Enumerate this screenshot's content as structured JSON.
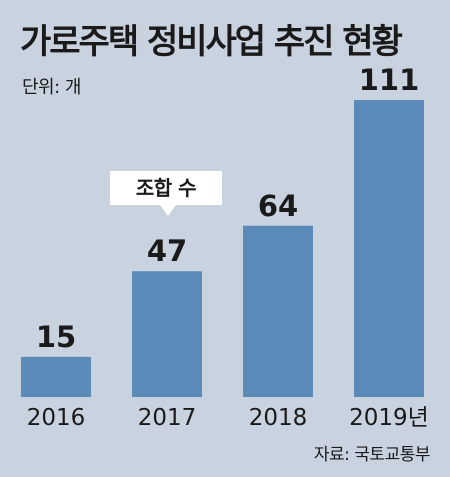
{
  "chart_data": {
    "type": "bar",
    "title": "가로주택 정비사업 추진 현황",
    "unit_label": "단위: 개",
    "categories": [
      "2016",
      "2017",
      "2018",
      "2019년"
    ],
    "values": [
      15,
      47,
      64,
      111
    ],
    "value_labels": [
      "15",
      "47",
      "64",
      "111"
    ],
    "annotation": "조합 수",
    "source": "자료: 국토교통부",
    "ylim": [
      0,
      111
    ],
    "grid": false,
    "colors": {
      "bar": "#5b8ab8",
      "background": "#c8d3df",
      "text": "#1a1a1a",
      "callout": "#ffffff"
    }
  }
}
